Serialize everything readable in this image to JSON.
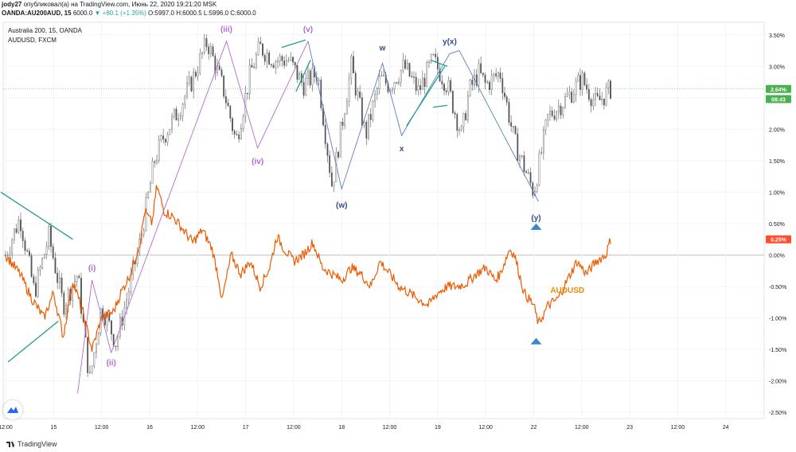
{
  "header": {
    "author": "jody27",
    "published_text": "опубликовал(а) на TradingView.com, Июнь 22, 2020 19:21:20 MSK"
  },
  "ohlc": {
    "symbol": "OANDA:AU200AUD, 15",
    "last": "6000.0",
    "change": "▼ +80.1 (+1.35%)",
    "o": "O:5997.0",
    "h": "H:6000.5",
    "l": "L:5996.0",
    "c": "C:6000.0"
  },
  "legend": {
    "main_series": "Australia 200, 15, OANDA",
    "compare_series": "AUDUSD, FXCM"
  },
  "footer": {
    "brand": "TradingView"
  },
  "colors": {
    "candles": "#555555",
    "compare_line": "#ef5a00",
    "wave_purple": "#b16bd1",
    "wave_blue": "#5b7fbf",
    "trend_teal": "#1f9e8e",
    "marker_blue": "#3d85c6",
    "price_badge_green": "#4caf50",
    "compare_badge_red": "#ff4d2e"
  },
  "chart_data": {
    "type": "line",
    "title": "",
    "xlabel": "",
    "ylabel": "",
    "y_unit": "%",
    "ylim": [
      -2.6,
      3.7
    ],
    "yticks": [
      "3.50%",
      "3.00%",
      "2.50%",
      "2.00%",
      "1.50%",
      "1.00%",
      "0.50%",
      "0.00%",
      "-0.50%",
      "-1.00%",
      "-1.50%",
      "-2.00%",
      "-2.50%"
    ],
    "ytick_values": [
      3.5,
      3.0,
      2.5,
      2.0,
      1.5,
      1.0,
      0.5,
      0.0,
      -0.5,
      -1.0,
      -1.5,
      -2.0,
      -2.5
    ],
    "xticks": [
      "12:00",
      "15",
      "12:00",
      "16",
      "12:00",
      "17",
      "12:00",
      "18",
      "12:00",
      "19",
      "12:00",
      "22",
      "12:00",
      "23",
      "12:00",
      "24"
    ],
    "xtick_values": [
      0,
      1,
      2,
      3,
      4,
      5,
      6,
      7,
      8,
      9,
      10,
      11,
      12,
      13,
      14,
      15
    ],
    "x_range": [
      -0.05,
      15.8
    ],
    "data_end_x": 12.6,
    "price_badges": [
      {
        "label": "2.64%",
        "value": 2.64,
        "color": "#4caf50"
      },
      {
        "label": "08:43",
        "value": 2.48,
        "color": "#4caf50"
      },
      {
        "label": "0.25%",
        "value": 0.25,
        "color": "#ff4d2e"
      }
    ],
    "series": [
      {
        "name": "Australia 200, 15, OANDA",
        "style": "candles",
        "x": [
          0.0,
          0.3,
          0.6,
          0.9,
          1.2,
          1.5,
          1.75,
          2.0,
          2.3,
          2.55,
          2.8,
          3.1,
          3.3,
          3.6,
          3.9,
          4.2,
          4.55,
          4.8,
          5.1,
          5.3,
          5.6,
          5.9,
          6.2,
          6.5,
          6.8,
          7.05,
          7.2,
          7.5,
          7.8,
          8.0,
          8.3,
          8.6,
          8.9,
          9.2,
          9.5,
          9.65,
          9.85,
          10.0,
          10.3,
          10.6,
          10.9,
          11.0,
          11.3,
          11.7,
          12.0,
          12.3,
          12.6
        ],
        "values": [
          0.0,
          0.6,
          -0.6,
          0.3,
          -0.8,
          -0.3,
          -2.0,
          -0.8,
          -1.4,
          -0.6,
          0.2,
          1.5,
          1.9,
          2.3,
          2.8,
          3.4,
          2.6,
          1.8,
          2.9,
          3.3,
          3.1,
          3.1,
          2.7,
          2.9,
          1.1,
          2.3,
          3.0,
          1.9,
          2.8,
          2.7,
          3.0,
          2.6,
          3.1,
          2.7,
          1.9,
          2.6,
          2.9,
          2.7,
          2.9,
          1.8,
          1.2,
          1.0,
          2.2,
          2.5,
          2.8,
          2.4,
          2.64
        ]
      },
      {
        "name": "AUDUSD, FXCM",
        "label": "AUDUSD",
        "style": "line",
        "x": [
          0.0,
          0.3,
          0.55,
          0.8,
          1.0,
          1.2,
          1.4,
          1.6,
          1.8,
          2.0,
          2.25,
          2.4,
          2.6,
          2.8,
          2.9,
          3.05,
          3.15,
          3.3,
          3.5,
          3.7,
          3.9,
          4.1,
          4.3,
          4.45,
          4.5,
          4.7,
          4.9,
          5.1,
          5.3,
          5.5,
          5.65,
          5.8,
          6.0,
          6.2,
          6.4,
          6.6,
          6.8,
          7.0,
          7.2,
          7.4,
          7.6,
          7.8,
          8.0,
          8.2,
          8.4,
          8.6,
          8.8,
          9.0,
          9.2,
          9.4,
          9.6,
          9.8,
          10.0,
          10.2,
          10.3,
          10.5,
          10.6,
          10.8,
          11.0,
          11.1,
          11.3,
          11.5,
          11.7,
          11.9,
          12.1,
          12.3,
          12.5,
          12.6
        ],
        "values": [
          0.0,
          -0.3,
          -0.7,
          -1.0,
          -0.6,
          -1.3,
          -0.4,
          -0.9,
          -1.5,
          -1.0,
          -0.9,
          -0.6,
          -0.3,
          0.2,
          0.7,
          0.5,
          1.1,
          0.7,
          0.6,
          0.4,
          0.2,
          0.4,
          0.1,
          -0.4,
          -0.75,
          0.0,
          -0.3,
          -0.1,
          -0.5,
          -0.2,
          0.3,
          0.1,
          -0.1,
          0.0,
          0.2,
          -0.2,
          -0.3,
          -0.4,
          -0.2,
          -0.3,
          -0.5,
          -0.1,
          -0.3,
          -0.5,
          -0.6,
          -0.7,
          -0.8,
          -0.6,
          -0.5,
          -0.5,
          -0.45,
          -0.3,
          -0.2,
          -0.4,
          -0.3,
          0.1,
          0.0,
          -0.6,
          -0.8,
          -1.1,
          -0.8,
          -0.7,
          -0.4,
          -0.1,
          -0.3,
          -0.1,
          0.0,
          0.25
        ]
      }
    ],
    "annotations": [
      {
        "text": "(i)",
        "x": 1.8,
        "y": -0.25,
        "color": "#b16bd1"
      },
      {
        "text": "(ii)",
        "x": 2.2,
        "y": -1.75,
        "color": "#b16bd1"
      },
      {
        "text": "(iii)",
        "x": 4.6,
        "y": 3.55,
        "color": "#b16bd1"
      },
      {
        "text": "(iv)",
        "x": 5.25,
        "y": 1.45,
        "color": "#b16bd1"
      },
      {
        "text": "(v)",
        "x": 6.3,
        "y": 3.55,
        "color": "#b16bd1"
      },
      {
        "text": "w",
        "x": 7.85,
        "y": 3.25,
        "color": "#2f4f8f"
      },
      {
        "text": "(w)",
        "x": 7.0,
        "y": 0.75,
        "color": "#2f4f8f"
      },
      {
        "text": "x",
        "x": 8.25,
        "y": 1.65,
        "color": "#2f4f8f"
      },
      {
        "text": "y(x)",
        "x": 9.25,
        "y": 3.35,
        "color": "#2f4f8f"
      },
      {
        "text": "(y)",
        "x": 11.05,
        "y": 0.55,
        "color": "#2f4f8f"
      },
      {
        "text": "AUDUSD",
        "x": 11.7,
        "y": -0.6,
        "color": "#ef8a00"
      }
    ],
    "wave_lines": [
      {
        "color": "#b16bd1",
        "points": [
          [
            1.5,
            -2.2
          ],
          [
            1.8,
            -0.4
          ],
          [
            2.2,
            -1.55
          ],
          [
            4.6,
            3.4
          ],
          [
            5.25,
            1.7
          ],
          [
            6.3,
            3.4
          ]
        ]
      },
      {
        "color": "#5b7fbf",
        "points": [
          [
            6.3,
            3.4
          ],
          [
            7.0,
            1.05
          ],
          [
            7.85,
            3.05
          ],
          [
            8.25,
            1.9
          ],
          [
            9.25,
            3.2
          ],
          [
            9.45,
            3.25
          ],
          [
            11.1,
            0.85
          ]
        ]
      }
    ],
    "trend_lines": [
      {
        "color": "#1f9e8e",
        "points": [
          [
            -0.1,
            1.0
          ],
          [
            1.4,
            0.25
          ]
        ]
      },
      {
        "color": "#1f9e8e",
        "points": [
          [
            0.05,
            -1.7
          ],
          [
            1.1,
            -1.05
          ]
        ]
      },
      {
        "color": "#1f9e8e",
        "points": [
          [
            5.75,
            3.3
          ],
          [
            6.25,
            3.42
          ]
        ]
      },
      {
        "color": "#1f9e8e",
        "points": [
          [
            6.05,
            2.6
          ],
          [
            6.35,
            3.1
          ]
        ]
      },
      {
        "color": "#1f9e8e",
        "points": [
          [
            8.35,
            2.05
          ],
          [
            9.15,
            3.0
          ]
        ]
      },
      {
        "color": "#1f9e8e",
        "points": [
          [
            8.85,
            3.1
          ],
          [
            9.2,
            3.0
          ]
        ]
      },
      {
        "color": "#1f9e8e",
        "points": [
          [
            8.9,
            2.35
          ],
          [
            9.2,
            2.38
          ]
        ]
      }
    ],
    "markers": [
      {
        "shape": "triangle-up",
        "x": 11.05,
        "y": 0.45,
        "color": "#3d85c6"
      },
      {
        "shape": "triangle-up",
        "x": 11.05,
        "y": -1.37,
        "color": "#3d85c6"
      }
    ],
    "grid": true,
    "legend": "top-left"
  }
}
